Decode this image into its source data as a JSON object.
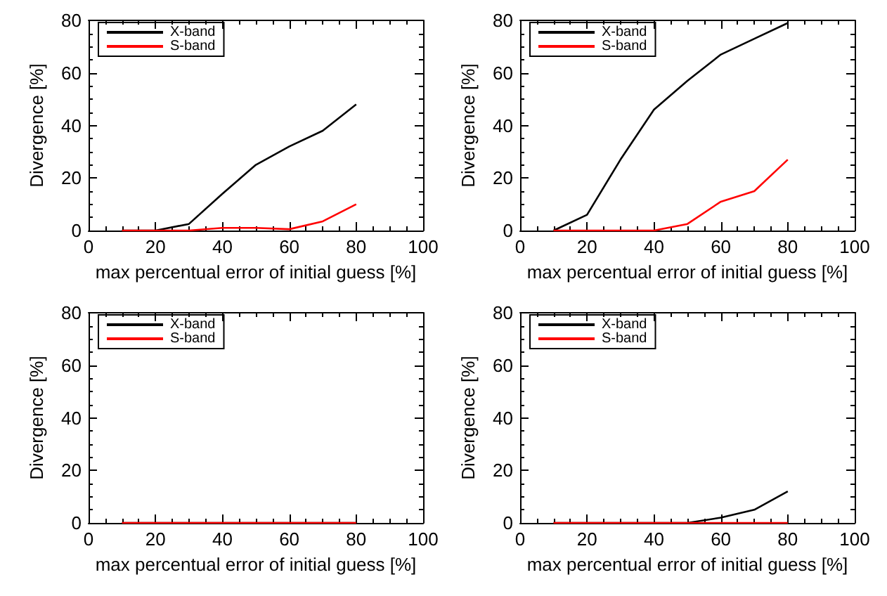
{
  "chart_data": [
    {
      "type": "line",
      "xlabel": "max percentual error of initial guess [%]",
      "ylabel": "Divergence [%]",
      "x": [
        10,
        20,
        30,
        40,
        50,
        60,
        70,
        80
      ],
      "xlim": [
        0,
        100
      ],
      "xticks": [
        0,
        20,
        40,
        60,
        80,
        100
      ],
      "ylim": [
        0,
        80
      ],
      "yticks": [
        0,
        20,
        40,
        60,
        80
      ],
      "grid": false,
      "legend": "top left",
      "marker": "none",
      "line_style": "solid",
      "series": [
        {
          "name": "X-band",
          "color": "#000000",
          "values": [
            0,
            0,
            2.5,
            14,
            25,
            32,
            38,
            48
          ]
        },
        {
          "name": "S-band",
          "color": "#ff0000",
          "values": [
            0,
            0,
            0,
            1,
            1,
            0.5,
            3.5,
            10
          ]
        }
      ]
    },
    {
      "type": "line",
      "xlabel": "max percentual error of initial guess [%]",
      "ylabel": "Divergence [%]",
      "x": [
        10,
        20,
        30,
        40,
        50,
        60,
        70,
        80
      ],
      "xlim": [
        0,
        100
      ],
      "xticks": [
        0,
        20,
        40,
        60,
        80,
        100
      ],
      "ylim": [
        0,
        80
      ],
      "yticks": [
        0,
        20,
        40,
        60,
        80
      ],
      "grid": false,
      "legend": "top left",
      "marker": "none",
      "line_style": "solid",
      "series": [
        {
          "name": "X-band",
          "color": "#000000",
          "values": [
            0,
            6,
            27,
            46,
            57,
            67,
            73,
            79
          ]
        },
        {
          "name": "S-band",
          "color": "#ff0000",
          "values": [
            0,
            0,
            0,
            0,
            2.5,
            11,
            15,
            27
          ]
        }
      ]
    },
    {
      "type": "line",
      "xlabel": "max percentual error of initial guess [%]",
      "ylabel": "Divergence [%]",
      "x": [
        10,
        20,
        30,
        40,
        50,
        60,
        70,
        80
      ],
      "xlim": [
        0,
        100
      ],
      "xticks": [
        0,
        20,
        40,
        60,
        80,
        100
      ],
      "ylim": [
        0,
        80
      ],
      "yticks": [
        0,
        20,
        40,
        60,
        80
      ],
      "grid": false,
      "legend": "top left",
      "marker": "none",
      "line_style": "solid",
      "series": [
        {
          "name": "X-band",
          "color": "#000000",
          "values": [
            0,
            0,
            0,
            0,
            0,
            0,
            0,
            0
          ]
        },
        {
          "name": "S-band",
          "color": "#ff0000",
          "values": [
            0,
            0,
            0,
            0,
            0,
            0,
            0,
            0
          ]
        }
      ]
    },
    {
      "type": "line",
      "xlabel": "max percentual error of initial guess [%]",
      "ylabel": "Divergence [%]",
      "x": [
        10,
        20,
        30,
        40,
        50,
        60,
        70,
        80
      ],
      "xlim": [
        0,
        100
      ],
      "xticks": [
        0,
        20,
        40,
        60,
        80,
        100
      ],
      "ylim": [
        0,
        80
      ],
      "yticks": [
        0,
        20,
        40,
        60,
        80
      ],
      "grid": false,
      "legend": "top left",
      "marker": "none",
      "line_style": "solid",
      "series": [
        {
          "name": "X-band",
          "color": "#000000",
          "values": [
            0,
            0,
            0,
            0,
            0,
            2,
            5,
            12
          ]
        },
        {
          "name": "S-band",
          "color": "#ff0000",
          "values": [
            0,
            0,
            0,
            0,
            0,
            0,
            0,
            0
          ]
        }
      ]
    }
  ]
}
